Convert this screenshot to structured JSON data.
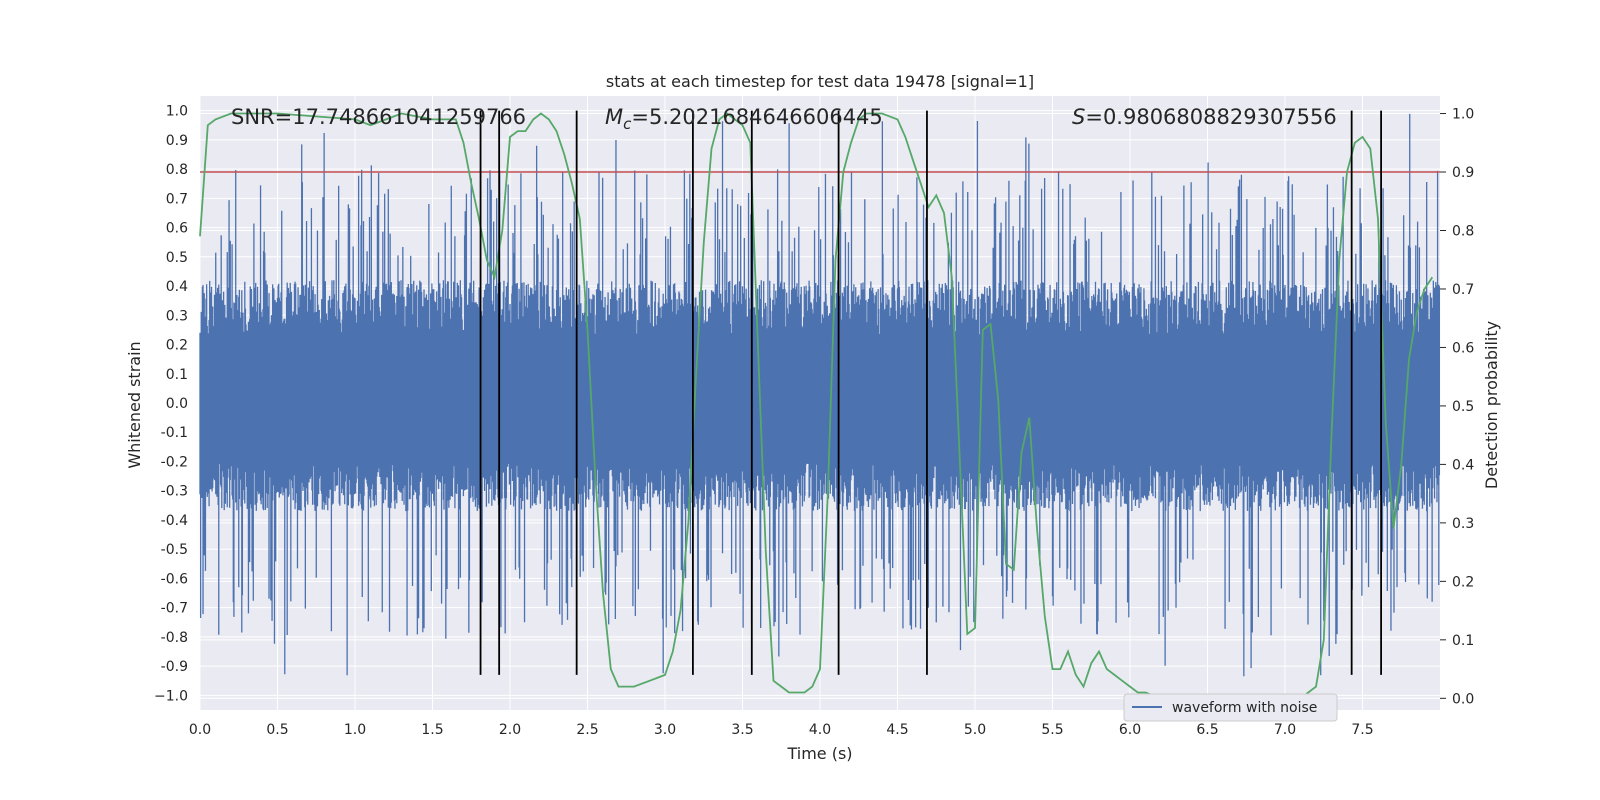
{
  "chart_data": {
    "type": "line",
    "title": "stats at each timestep for test data 19478 [signal=1]",
    "xlabel": "Time (s)",
    "ylabel": "Whitened strain",
    "y2label": "Detection probability",
    "xlim": [
      0.0,
      8.0
    ],
    "ylim": [
      -1.05,
      1.05
    ],
    "y2lim": [
      -0.02,
      1.03
    ],
    "xticks": [
      0.0,
      0.5,
      1.0,
      1.5,
      2.0,
      2.5,
      3.0,
      3.5,
      4.0,
      4.5,
      5.0,
      5.5,
      6.0,
      6.5,
      7.0,
      7.5
    ],
    "xtick_labels": [
      "0.0",
      "0.5",
      "1.0",
      "1.5",
      "2.0",
      "2.5",
      "3.0",
      "3.5",
      "4.0",
      "4.5",
      "5.0",
      "5.5",
      "6.0",
      "6.5",
      "7.0",
      "7.5"
    ],
    "yticks": [
      1.0,
      0.9,
      0.8,
      0.7,
      0.6,
      0.5,
      0.4,
      0.3,
      0.2,
      0.1,
      0.0,
      -0.1,
      -0.2,
      -0.3,
      -0.4,
      -0.5,
      -0.6,
      -0.7,
      -0.8,
      -0.9,
      -1.0
    ],
    "ytick_labels": [
      "1.0",
      "0.9",
      "0.8",
      "0.7",
      "0.6",
      "0.5",
      "0.4",
      "0.3",
      "0.2",
      "0.1",
      "0.0",
      "-0.1",
      "-0.2",
      "-0.3",
      "-0.4",
      "-0.5",
      "-0.6",
      "-0.7",
      "-0.8",
      "-0.9",
      "−1.0"
    ],
    "y2ticks": [
      1.0,
      0.9,
      0.8,
      0.7,
      0.6,
      0.5,
      0.4,
      0.3,
      0.2,
      0.1,
      0.0
    ],
    "y2tick_labels": [
      "1.0",
      "0.9",
      "0.8",
      "0.7",
      "0.6",
      "0.5",
      "0.4",
      "0.3",
      "0.2",
      "0.1",
      "0.0"
    ],
    "annotations": {
      "snr": "SNR=17.748661041259766",
      "mc_symbol": "M",
      "mc_sub": "c",
      "mc_value": "=5.2021684646606445",
      "s_symbol": "S",
      "s_value": "=0.9806808829307556"
    },
    "legend": {
      "label": "waveform with noise",
      "position": "lower-right"
    },
    "threshold": {
      "value": 0.9,
      "axis": "y2",
      "color": "#c44e52"
    },
    "event_lines": [
      1.81,
      1.93,
      2.43,
      3.18,
      3.56,
      4.12,
      4.69,
      7.43,
      7.62
    ],
    "event_line_range": [
      -0.93,
      1.0
    ],
    "waveform": {
      "name": "waveform with noise",
      "color": "#4c72b0",
      "t_start": 0.0,
      "t_end": 8.0,
      "n_samples": 2048,
      "band_upper": 0.42,
      "band_lower": -0.37,
      "typical_peak_range": [
        0.5,
        0.8
      ],
      "max": 1.0,
      "min": -0.94
    },
    "probability": {
      "color": "#55a868",
      "x": [
        0.0,
        0.05,
        0.1,
        0.2,
        0.5,
        1.0,
        1.1,
        1.2,
        1.3,
        1.5,
        1.65,
        1.7,
        1.75,
        1.8,
        1.85,
        1.9,
        1.95,
        2.0,
        2.05,
        2.1,
        2.15,
        2.2,
        2.25,
        2.3,
        2.35,
        2.4,
        2.45,
        2.5,
        2.55,
        2.6,
        2.65,
        2.7,
        2.8,
        2.9,
        3.0,
        3.05,
        3.1,
        3.15,
        3.2,
        3.25,
        3.3,
        3.35,
        3.4,
        3.45,
        3.5,
        3.55,
        3.6,
        3.65,
        3.7,
        3.75,
        3.8,
        3.85,
        3.9,
        3.95,
        4.0,
        4.05,
        4.1,
        4.15,
        4.2,
        4.25,
        4.3,
        4.4,
        4.5,
        4.55,
        4.6,
        4.65,
        4.7,
        4.75,
        4.8,
        4.85,
        4.9,
        4.95,
        5.0,
        5.05,
        5.1,
        5.15,
        5.2,
        5.25,
        5.3,
        5.35,
        5.4,
        5.45,
        5.5,
        5.55,
        5.6,
        5.65,
        5.7,
        5.75,
        5.8,
        5.85,
        5.9,
        5.95,
        6.0,
        6.05,
        6.1,
        6.2,
        6.3,
        6.5,
        7.0,
        7.1,
        7.2,
        7.25,
        7.3,
        7.35,
        7.4,
        7.45,
        7.5,
        7.55,
        7.6,
        7.65,
        7.7,
        7.75,
        7.8,
        7.85,
        7.9,
        7.95
      ],
      "y": [
        0.79,
        0.98,
        0.99,
        1.0,
        1.0,
        0.99,
        0.98,
        0.99,
        1.0,
        0.99,
        0.99,
        0.95,
        0.88,
        0.82,
        0.75,
        0.72,
        0.8,
        0.96,
        0.97,
        0.97,
        0.99,
        1.0,
        0.99,
        0.97,
        0.93,
        0.88,
        0.82,
        0.63,
        0.38,
        0.18,
        0.05,
        0.02,
        0.02,
        0.03,
        0.04,
        0.08,
        0.15,
        0.3,
        0.55,
        0.78,
        0.94,
        0.99,
        1.0,
        0.99,
        0.98,
        0.95,
        0.6,
        0.25,
        0.03,
        0.02,
        0.01,
        0.01,
        0.01,
        0.02,
        0.05,
        0.35,
        0.75,
        0.9,
        0.95,
        0.99,
        1.0,
        1.0,
        0.99,
        0.96,
        0.92,
        0.88,
        0.84,
        0.86,
        0.83,
        0.72,
        0.42,
        0.11,
        0.12,
        0.63,
        0.64,
        0.51,
        0.23,
        0.22,
        0.42,
        0.48,
        0.29,
        0.14,
        0.05,
        0.05,
        0.08,
        0.04,
        0.02,
        0.06,
        0.08,
        0.05,
        0.04,
        0.03,
        0.02,
        0.01,
        0.01,
        0.0,
        0.0,
        0.0,
        0.0,
        0.0,
        0.02,
        0.1,
        0.45,
        0.75,
        0.9,
        0.95,
        0.96,
        0.94,
        0.82,
        0.47,
        0.29,
        0.4,
        0.58,
        0.66,
        0.7,
        0.72
      ]
    }
  }
}
